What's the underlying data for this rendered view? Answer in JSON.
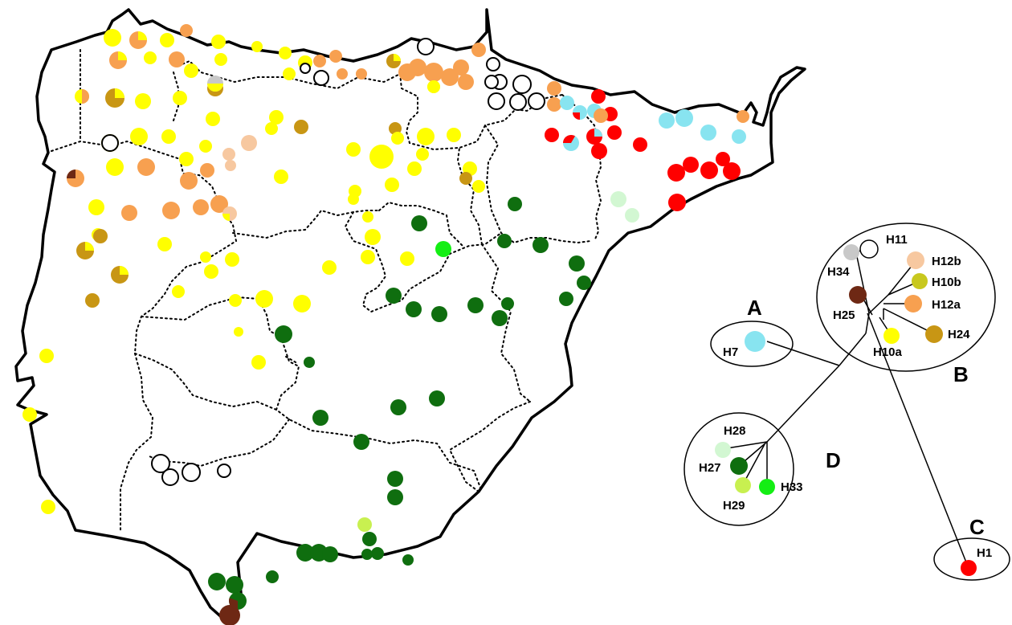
{
  "legend_colors": {
    "H1": "#ff0000",
    "H7": "#88e4f0",
    "H10a": "#ffff00",
    "H10b": "#c8c81e",
    "H11": "#ffffff",
    "H12a": "#f7a050",
    "H12b": "#f7c8a0",
    "H24": "#c89614",
    "H25": "#6e2814",
    "H27": "#0f6e0f",
    "H28": "#d2f7d2",
    "H29": "#c8f050",
    "H33": "#14ee14",
    "H34": "#c8c8c8"
  },
  "groups": {
    "A": {
      "label": "A",
      "haplotypes": [
        "H7"
      ]
    },
    "B": {
      "label": "B",
      "haplotypes": [
        "H11",
        "H34",
        "H12b",
        "H10b",
        "H25",
        "H12a",
        "H24",
        "H10a"
      ]
    },
    "C": {
      "label": "C",
      "haplotypes": [
        "H1"
      ]
    },
    "D": {
      "label": "D",
      "haplotypes": [
        "H28",
        "H27",
        "H29",
        "H33"
      ]
    }
  },
  "haplotype_labels": {
    "H1": "H1",
    "H7": "H7",
    "H10a": "H10a",
    "H10b": "H10b",
    "H11": "H11",
    "H12a": "H12a",
    "H12b": "H12b",
    "H24": "H24",
    "H25": "H25",
    "H27": "H27",
    "H28": "H28",
    "H29": "H29",
    "H33": "H33",
    "H34": "H34"
  }
}
